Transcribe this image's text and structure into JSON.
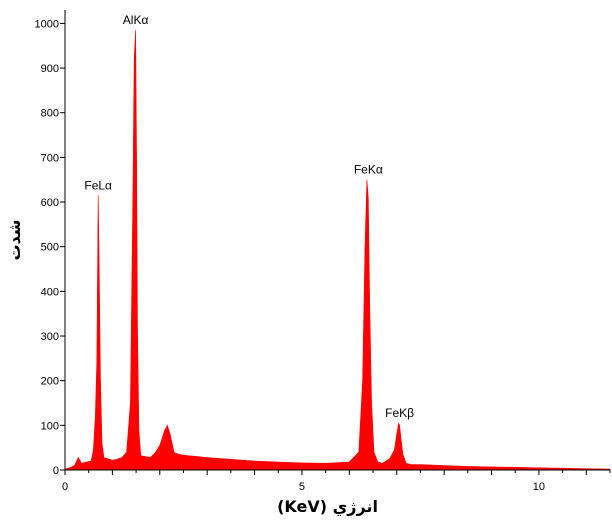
{
  "chart_data": {
    "type": "area",
    "title": "",
    "xlabel": "(KeV) انرژي",
    "ylabel": "شدت",
    "xlim": [
      0,
      11.5
    ],
    "ylim": [
      0,
      1030
    ],
    "x_ticks": [
      0,
      5,
      10
    ],
    "y_ticks": [
      0,
      100,
      200,
      300,
      400,
      500,
      600,
      700,
      800,
      900,
      1000
    ],
    "grid": false,
    "legend": "none",
    "fill_color": "#ff0000",
    "axis_color": "#000000",
    "peaks": [
      {
        "label": "FeLα",
        "energy": 0.7,
        "counts": 615
      },
      {
        "label": "AlKα",
        "energy": 1.49,
        "counts": 985
      },
      {
        "label": "FeKα",
        "energy": 6.4,
        "counts": 650
      },
      {
        "label": "FeKβ",
        "energy": 7.06,
        "counts": 105
      }
    ],
    "spectrum": {
      "x": [
        0.0,
        0.1,
        0.2,
        0.28,
        0.35,
        0.45,
        0.55,
        0.6,
        0.64,
        0.67,
        0.7,
        0.72,
        0.75,
        0.78,
        0.82,
        0.9,
        1.0,
        1.1,
        1.2,
        1.3,
        1.38,
        1.43,
        1.46,
        1.49,
        1.51,
        1.53,
        1.56,
        1.6,
        1.7,
        1.8,
        1.9,
        2.0,
        2.1,
        2.16,
        2.22,
        2.3,
        2.4,
        2.6,
        2.8,
        3.0,
        3.5,
        4.0,
        4.5,
        5.0,
        5.5,
        6.0,
        6.2,
        6.28,
        6.33,
        6.37,
        6.4,
        6.43,
        6.47,
        6.52,
        6.6,
        6.7,
        6.85,
        6.95,
        7.0,
        7.04,
        7.06,
        7.09,
        7.13,
        7.2,
        7.3,
        7.5,
        8.0,
        8.5,
        9.0,
        9.5,
        10.0,
        10.5,
        11.0,
        11.5
      ],
      "y": [
        2,
        5,
        10,
        28,
        15,
        18,
        20,
        45,
        120,
        240,
        615,
        470,
        200,
        60,
        28,
        25,
        22,
        24,
        28,
        40,
        150,
        600,
        920,
        985,
        700,
        320,
        90,
        32,
        30,
        28,
        38,
        55,
        88,
        100,
        80,
        40,
        35,
        32,
        30,
        28,
        24,
        20,
        18,
        16,
        15,
        18,
        40,
        200,
        500,
        650,
        610,
        370,
        150,
        40,
        18,
        15,
        25,
        45,
        80,
        105,
        100,
        70,
        35,
        15,
        12,
        12,
        10,
        8,
        7,
        6,
        5,
        4,
        3,
        2
      ]
    }
  }
}
